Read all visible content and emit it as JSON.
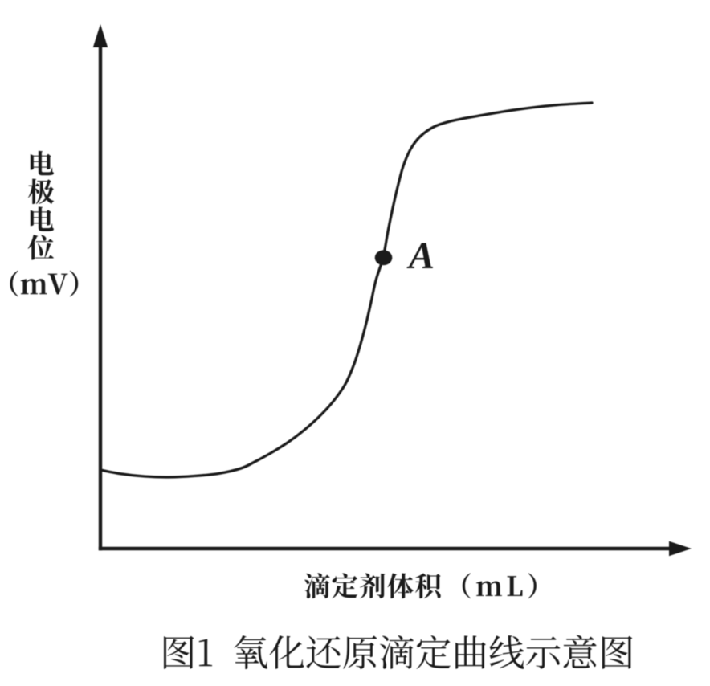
{
  "figure": {
    "background": "#ffffff",
    "ink_color": "#1a1a1a"
  },
  "chart_data": {
    "type": "line",
    "title": "图1 氧化还原滴定曲线示意图",
    "xlabel": "滴定剂体积（mL）",
    "ylabel": "电极电位（mV）",
    "ylabel_stack": "电极电位",
    "ylabel_unit": "（mV）",
    "xlim": [
      0,
      1
    ],
    "ylim": [
      0,
      1
    ],
    "x_unit": "mL",
    "y_unit": "mV",
    "grid": false,
    "legend": false,
    "axis_arrows": true,
    "series": [
      {
        "name": "redox-titration-curve",
        "x": [
          0.0,
          0.0381,
          0.0777,
          0.1201,
          0.1653,
          0.2076,
          0.2472,
          0.2726,
          0.3008,
          0.3291,
          0.3573,
          0.3856,
          0.4096,
          0.4308,
          0.4463,
          0.4576,
          0.4675,
          0.476,
          0.4845,
          0.4972,
          0.5056,
          0.5141,
          0.5226,
          0.5325,
          0.5452,
          0.5621,
          0.5876,
          0.6215,
          0.6709,
          0.7316,
          0.798,
          0.8644
        ],
        "y": [
          0.1571,
          0.149,
          0.1442,
          0.1426,
          0.145,
          0.1498,
          0.1603,
          0.1739,
          0.1915,
          0.2115,
          0.2356,
          0.2644,
          0.2941,
          0.3285,
          0.3686,
          0.4087,
          0.4503,
          0.492,
          0.5353,
          0.5809,
          0.633,
          0.6795,
          0.7212,
          0.7628,
          0.7965,
          0.8221,
          0.8421,
          0.8542,
          0.8646,
          0.8758,
          0.8846,
          0.8894
        ]
      }
    ],
    "annotations": [
      {
        "label": "A",
        "x": 0.4979,
        "y": 0.5804,
        "marker": "dot"
      }
    ]
  }
}
